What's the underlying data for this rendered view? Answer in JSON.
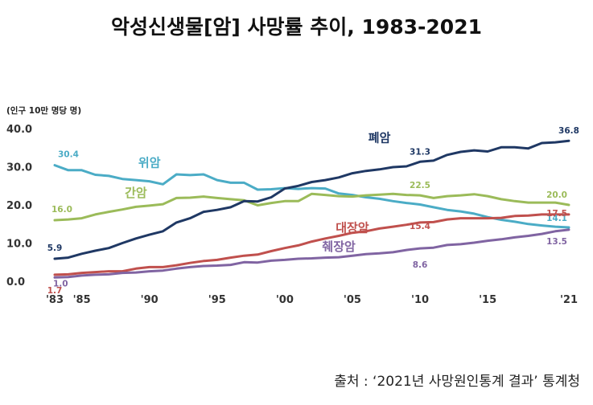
{
  "chart_data": {
    "type": "line",
    "title": "악성신생물[암] 사망률 추이, 1983-2021",
    "unit": "(인구 10만 명당 명)",
    "source": "출처 : ‘2021년 사망원인통계 결과’ 통계청",
    "ylim": [
      0,
      40
    ],
    "yticks": [
      "0.0",
      "10.0",
      "20.0",
      "30.0",
      "40.0"
    ],
    "xlim": [
      1983,
      2021
    ],
    "xticks": [
      {
        "year": 1983,
        "label": "'83"
      },
      {
        "year": 1985,
        "label": "'85"
      },
      {
        "year": 1990,
        "label": "'90"
      },
      {
        "year": 1995,
        "label": "'95"
      },
      {
        "year": 2000,
        "label": "'00"
      },
      {
        "year": 2005,
        "label": "'05"
      },
      {
        "year": 2010,
        "label": "'10"
      },
      {
        "year": 2015,
        "label": "'15"
      },
      {
        "year": 2021,
        "label": "'21"
      }
    ],
    "x": [
      1983,
      1984,
      1985,
      1986,
      1987,
      1988,
      1989,
      1990,
      1991,
      1992,
      1993,
      1994,
      1995,
      1996,
      1997,
      1998,
      1999,
      2000,
      2001,
      2002,
      2003,
      2004,
      2005,
      2006,
      2007,
      2008,
      2009,
      2010,
      2011,
      2012,
      2013,
      2014,
      2015,
      2016,
      2017,
      2018,
      2019,
      2020,
      2021
    ],
    "series": [
      {
        "name": "위암",
        "color": "#4bacc6",
        "values": [
          30.4,
          29.1,
          29.1,
          27.9,
          27.6,
          26.8,
          26.5,
          26.2,
          25.4,
          28.0,
          27.8,
          28.0,
          26.5,
          25.8,
          25.8,
          24.0,
          24.1,
          24.4,
          24.2,
          24.4,
          24.3,
          23.0,
          22.6,
          22.0,
          21.6,
          21.0,
          20.5,
          20.1,
          19.4,
          18.7,
          18.3,
          17.7,
          16.8,
          16.1,
          15.6,
          15.0,
          14.6,
          14.3,
          14.1
        ],
        "labels": [
          {
            "year": 1983,
            "value": "30.4"
          },
          {
            "year": 2021,
            "value": "14.1"
          }
        ]
      },
      {
        "name": "간암",
        "color": "#9bbb59",
        "values": [
          16.0,
          16.2,
          16.5,
          17.5,
          18.2,
          18.8,
          19.5,
          19.8,
          20.2,
          21.8,
          21.9,
          22.2,
          21.8,
          21.5,
          21.2,
          19.9,
          20.5,
          21.0,
          21.0,
          22.9,
          22.6,
          22.3,
          22.2,
          22.5,
          22.7,
          22.9,
          22.6,
          22.5,
          21.8,
          22.3,
          22.5,
          22.8,
          22.3,
          21.5,
          21.0,
          20.6,
          20.6,
          20.6,
          20.0
        ],
        "labels": [
          {
            "year": 1983,
            "value": "16.0"
          },
          {
            "year": 2010,
            "value": "22.5"
          },
          {
            "year": 2021,
            "value": "20.0"
          }
        ]
      },
      {
        "name": "폐암",
        "color": "#1f3864",
        "values": [
          5.9,
          6.2,
          7.2,
          8.0,
          8.7,
          10.0,
          11.2,
          12.2,
          13.1,
          15.4,
          16.5,
          18.2,
          18.7,
          19.4,
          21.0,
          20.9,
          22.0,
          24.3,
          25.0,
          26.0,
          26.5,
          27.2,
          28.3,
          28.9,
          29.3,
          29.9,
          30.1,
          31.3,
          31.6,
          33.1,
          33.9,
          34.3,
          34.0,
          35.1,
          35.1,
          34.8,
          36.2,
          36.4,
          36.8
        ],
        "labels": [
          {
            "year": 1983,
            "value": "5.9"
          },
          {
            "year": 2010,
            "value": "31.3"
          },
          {
            "year": 2021,
            "value": "36.8"
          }
        ]
      },
      {
        "name": "대장암",
        "color": "#c0504d",
        "values": [
          1.7,
          1.8,
          2.2,
          2.4,
          2.6,
          2.6,
          3.3,
          3.7,
          3.7,
          4.2,
          4.8,
          5.3,
          5.6,
          6.2,
          6.7,
          7.0,
          7.9,
          8.7,
          9.4,
          10.4,
          11.2,
          11.9,
          12.7,
          13.1,
          13.8,
          14.3,
          14.8,
          15.4,
          15.5,
          16.2,
          16.5,
          16.5,
          16.5,
          16.6,
          17.1,
          17.2,
          17.5,
          17.5,
          17.5
        ],
        "labels": [
          {
            "year": 1983,
            "value": "1.7"
          },
          {
            "year": 2010,
            "value": "15.4"
          },
          {
            "year": 2021,
            "value": "17.5"
          }
        ]
      },
      {
        "name": "췌장암",
        "color": "#8064a2",
        "values": [
          1.0,
          1.1,
          1.5,
          1.7,
          1.8,
          2.2,
          2.3,
          2.6,
          2.8,
          3.3,
          3.7,
          4.0,
          4.1,
          4.3,
          5.0,
          4.9,
          5.4,
          5.6,
          5.9,
          6.0,
          6.2,
          6.3,
          6.7,
          7.1,
          7.3,
          7.6,
          8.2,
          8.6,
          8.8,
          9.5,
          9.7,
          10.1,
          10.6,
          11.0,
          11.5,
          11.9,
          12.4,
          13.1,
          13.5
        ],
        "labels": [
          {
            "year": 1983,
            "value": "1.0"
          },
          {
            "year": 2010,
            "value": "8.6"
          },
          {
            "year": 2021,
            "value": "13.5"
          }
        ]
      }
    ]
  }
}
